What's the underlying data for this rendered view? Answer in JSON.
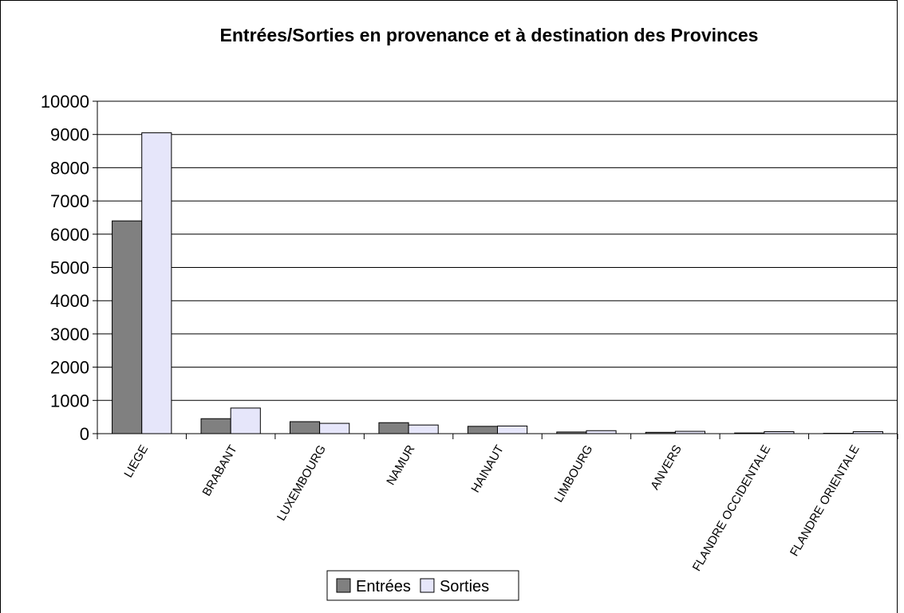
{
  "chart_data": {
    "type": "bar",
    "title": "Entrées/Sorties en provenance et à destination des Provinces",
    "categories": [
      "LIEGE",
      "BRABANT",
      "LUXEMBOURG",
      "NAMUR",
      "HAINAUT",
      "LIMBOURG",
      "ANVERS",
      "FLANDRE OCCIDENTALE",
      "FLANDRE ORIENTALE"
    ],
    "series": [
      {
        "name": "Entrées",
        "color": "#808080",
        "values": [
          6400,
          450,
          360,
          330,
          220,
          50,
          40,
          20,
          10
        ]
      },
      {
        "name": "Sorties",
        "color": "#e6e6fa",
        "values": [
          9050,
          770,
          310,
          260,
          230,
          90,
          70,
          60,
          60
        ]
      }
    ],
    "ylim": [
      0,
      10000
    ],
    "yticks": [
      0,
      1000,
      2000,
      3000,
      4000,
      5000,
      6000,
      7000,
      8000,
      9000,
      10000
    ],
    "grid": true,
    "legend": "bottom"
  }
}
